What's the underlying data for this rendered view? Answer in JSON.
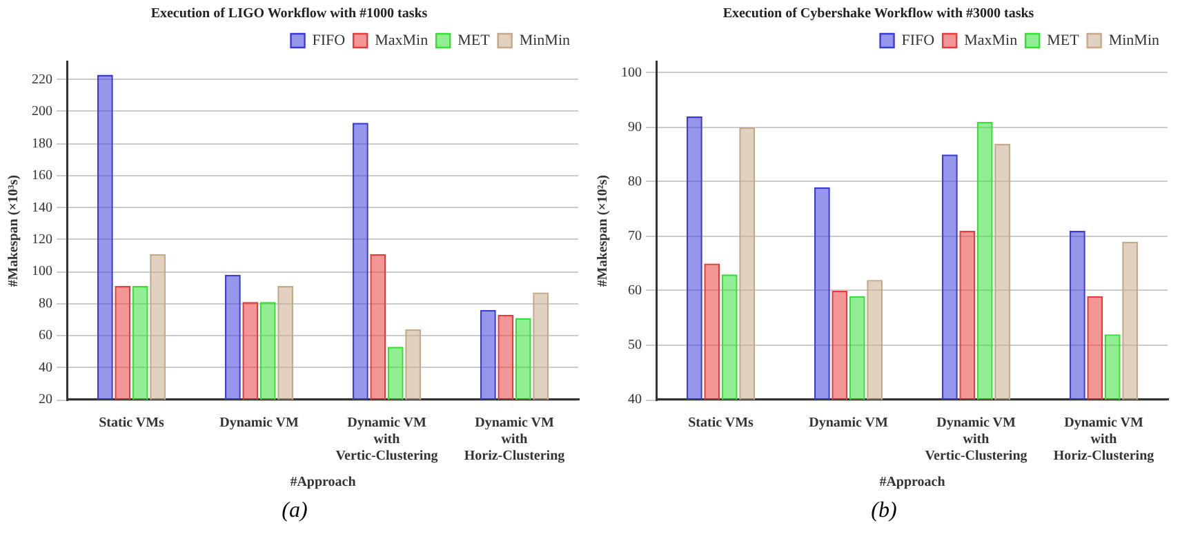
{
  "chart_data": [
    {
      "type": "bar",
      "title": "Execution of LIGO Workflow with #1000 tasks",
      "xlabel": "#Approach",
      "ylabel": "#Makespan (×10³s)",
      "categories": [
        "Static VMs",
        "Dynamic VM",
        "Dynamic VM with Vertic-Clustering",
        "Dynamic VM with Horiz-Clustering"
      ],
      "series": [
        {
          "name": "FIFO",
          "color": "#3a3ad8",
          "values": [
            223,
            98,
            193,
            76
          ]
        },
        {
          "name": "MaxMin",
          "color": "#e83a3a",
          "values": [
            91,
            81,
            111,
            73
          ]
        },
        {
          "name": "MET",
          "color": "#33e033",
          "values": [
            91,
            81,
            53,
            71
          ]
        },
        {
          "name": "MinMin",
          "color": "#c4a888",
          "values": [
            111,
            91,
            64,
            87
          ]
        }
      ],
      "ylim": [
        20,
        231
      ],
      "yticks": [
        20,
        40,
        60,
        80,
        100,
        120,
        140,
        160,
        180,
        200,
        220
      ],
      "grid": "y",
      "legend": "top right",
      "annotations": [
        "(a)"
      ]
    },
    {
      "type": "bar",
      "title": "Execution of Cybershake Workflow with #3000 tasks",
      "xlabel": "#Approach",
      "ylabel": "#Makespan (×10²s)",
      "categories": [
        "Static VMs",
        "Dynamic VM",
        "Dynamic VM with Vertic-Clustering",
        "Dynamic VM with Horiz-Clustering"
      ],
      "series": [
        {
          "name": "FIFO",
          "color": "#3a3ad8",
          "values": [
            92,
            79,
            85,
            71
          ]
        },
        {
          "name": "MaxMin",
          "color": "#e83a3a",
          "values": [
            65,
            60,
            71,
            59
          ]
        },
        {
          "name": "MET",
          "color": "#33e033",
          "values": [
            63,
            59,
            91,
            52
          ]
        },
        {
          "name": "MinMin",
          "color": "#c4a888",
          "values": [
            90,
            62,
            87,
            69
          ]
        }
      ],
      "ylim": [
        40,
        102
      ],
      "yticks": [
        40,
        50,
        60,
        70,
        80,
        90,
        100
      ],
      "grid": "y",
      "legend": "top right",
      "annotations": [
        "(b)"
      ]
    }
  ]
}
